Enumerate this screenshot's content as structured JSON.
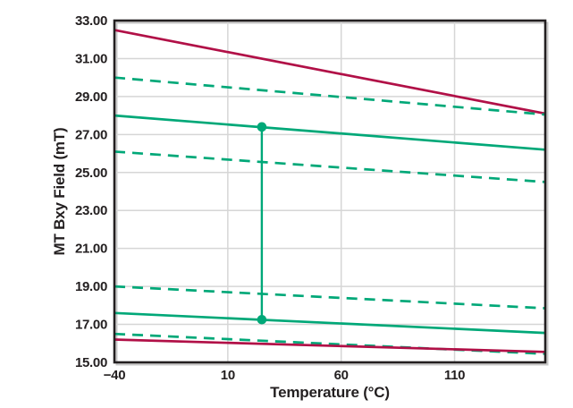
{
  "colors": {
    "green": "#00a878",
    "crimson": "#b11047",
    "grid": "#d6d6d6",
    "frame": "#231f20",
    "frame_shadow": "#c8c8c8",
    "text": "#231f20",
    "background": "#ffffff"
  },
  "chart_data": {
    "type": "line",
    "title": "",
    "xlabel": "Temperature (°C)",
    "ylabel": "MT Bxy Field (mT)",
    "xlim": [
      -40,
      150
    ],
    "ylim": [
      15,
      33
    ],
    "grid": {
      "horizontal": true,
      "vertical": true
    },
    "legend": "none",
    "x_ticks": [
      {
        "value": -40,
        "label": "−40"
      },
      {
        "value": 10,
        "label": "10"
      },
      {
        "value": 60,
        "label": "60"
      },
      {
        "value": 110,
        "label": "110"
      }
    ],
    "y_ticks": [
      {
        "value": 33,
        "label": "33.00"
      },
      {
        "value": 31,
        "label": "31.00"
      },
      {
        "value": 29,
        "label": "29.00"
      },
      {
        "value": 27,
        "label": "27.00"
      },
      {
        "value": 25,
        "label": "25.00"
      },
      {
        "value": 23,
        "label": "23.00"
      },
      {
        "value": 21,
        "label": "21.00"
      },
      {
        "value": 19,
        "label": "19.00"
      },
      {
        "value": 17,
        "label": "17.00"
      },
      {
        "value": 15,
        "label": "15.00"
      }
    ],
    "x": [
      -40,
      150
    ],
    "series": [
      {
        "name": "red-solid-upper",
        "style": "solid",
        "color": "#b11047",
        "values": [
          32.5,
          28.1
        ]
      },
      {
        "name": "green-dashed-upper",
        "style": "dashed",
        "color": "#00a878",
        "values": [
          30.0,
          28.05
        ]
      },
      {
        "name": "green-solid-upper",
        "style": "solid",
        "color": "#00a878",
        "values": [
          28.0,
          26.2
        ]
      },
      {
        "name": "green-dashed-mid",
        "style": "dashed",
        "color": "#00a878",
        "values": [
          26.1,
          24.5
        ]
      },
      {
        "name": "green-dashed-low-high",
        "style": "dashed",
        "color": "#00a878",
        "values": [
          19.0,
          17.85
        ]
      },
      {
        "name": "green-solid-lower",
        "style": "solid",
        "color": "#00a878",
        "values": [
          17.6,
          16.55
        ]
      },
      {
        "name": "green-dashed-bottom",
        "style": "dashed",
        "color": "#00a878",
        "values": [
          16.5,
          15.45
        ]
      },
      {
        "name": "red-solid-lower",
        "style": "solid",
        "color": "#b11047",
        "values": [
          16.2,
          15.55
        ]
      }
    ],
    "annotation": {
      "type": "vertical-connector",
      "x": 25,
      "y_from": 17.25,
      "y_to": 27.4,
      "color": "#00a878",
      "marker": "circle"
    }
  }
}
